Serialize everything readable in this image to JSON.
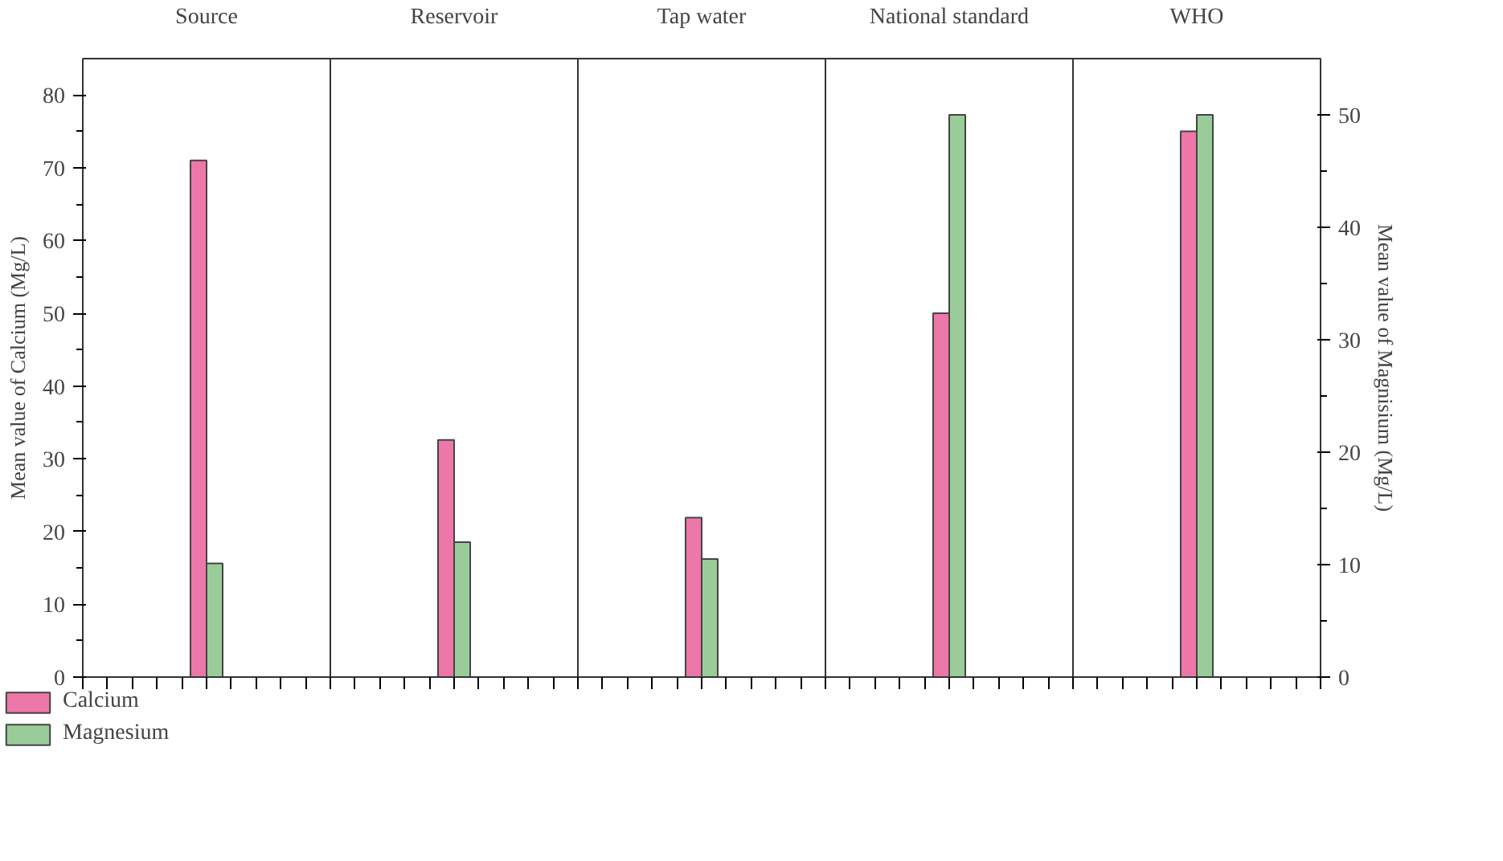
{
  "chart_data": {
    "type": "bar",
    "categories": [
      "Source",
      "Reservoir",
      "Tap water",
      "National standard",
      "WHO"
    ],
    "ylabel": "Mean value of Calcium (Mg/L)",
    "y2label": "Mean value of Magnisium (Mg/L)",
    "series": [
      {
        "name": "Calcium",
        "color": "#ee77aa",
        "values": [
          71,
          32.6,
          21.9,
          50,
          75
        ]
      },
      {
        "name": "Magnesium",
        "color": "#99cc99",
        "axis": "y2",
        "values": [
          10.1,
          12,
          10.5,
          50,
          50
        ]
      }
    ],
    "ylim": [
      0,
      85
    ],
    "yticks": [
      0,
      10,
      20,
      30,
      40,
      50,
      60,
      70,
      80
    ],
    "y2lim": [
      0,
      55
    ],
    "y2ticks": [
      0,
      10,
      20,
      30,
      40,
      50
    ],
    "grid": false,
    "legend": "bottom left"
  }
}
